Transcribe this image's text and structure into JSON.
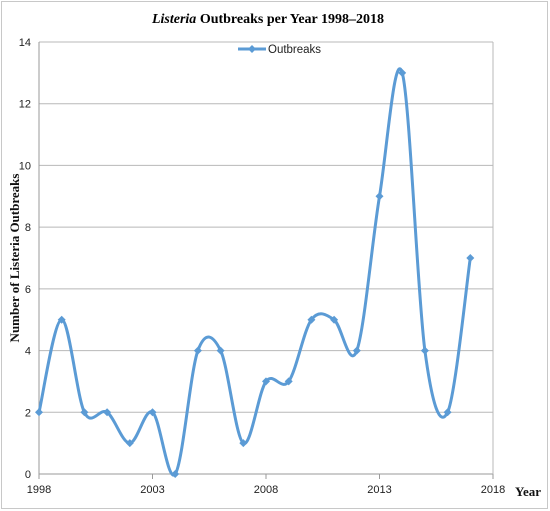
{
  "chart_data": {
    "type": "line",
    "title_italic": "Listeria",
    "title_rest": " Outbreaks per Year 1998–2018",
    "xlabel": "Year",
    "ylabel": "Number of Listeria Outbreaks",
    "xlim": [
      1998,
      2018
    ],
    "ylim": [
      0,
      14
    ],
    "x_ticks": [
      1998,
      2003,
      2008,
      2013,
      2018
    ],
    "y_ticks": [
      0,
      2,
      4,
      6,
      8,
      10,
      12,
      14
    ],
    "grid": "horizontal",
    "legend_position": "top-center",
    "smooth": true,
    "series": [
      {
        "name": "Outbreaks",
        "color": "#5b9bd5",
        "marker": "diamond",
        "x": [
          1998,
          1999,
          2000,
          2001,
          2002,
          2003,
          2004,
          2005,
          2006,
          2007,
          2008,
          2009,
          2010,
          2011,
          2012,
          2013,
          2014,
          2015,
          2016,
          2017
        ],
        "values": [
          2,
          5,
          2,
          2,
          1,
          2,
          0,
          4,
          4,
          1,
          3,
          3,
          5,
          5,
          4,
          9,
          13,
          4,
          2,
          7
        ]
      }
    ]
  }
}
